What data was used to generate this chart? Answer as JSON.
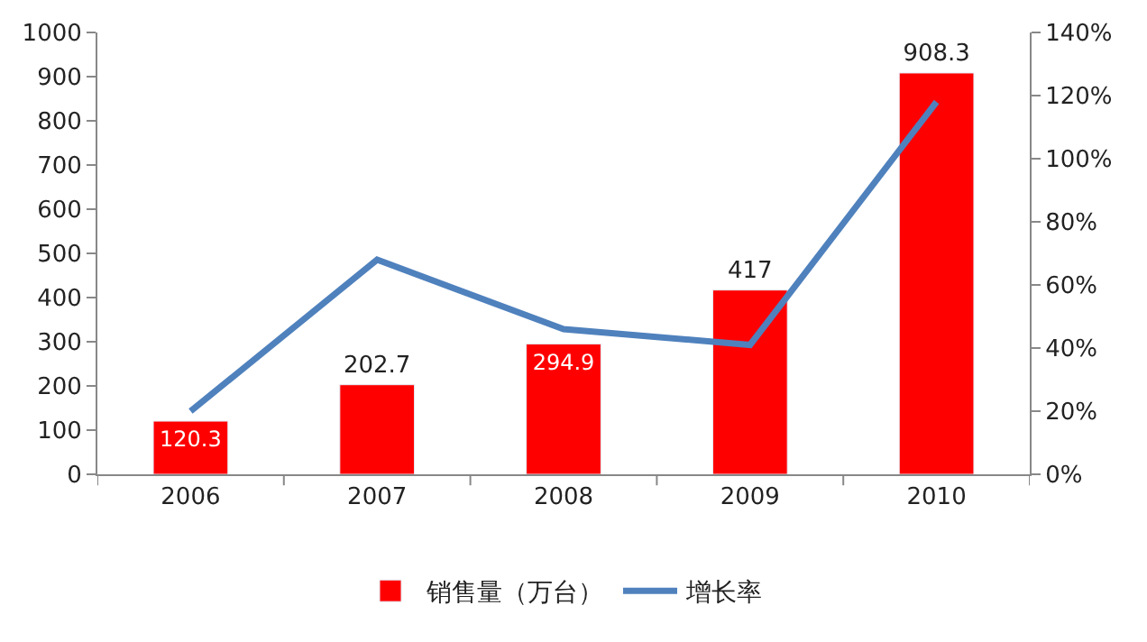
{
  "chart_data": {
    "type": "bar",
    "categories": [
      "2006",
      "2007",
      "2008",
      "2009",
      "2010"
    ],
    "series": [
      {
        "name": "销售量（万台）",
        "color": "#ff0000",
        "values": [
          120.3,
          202.7,
          294.9,
          417,
          908.3
        ],
        "data_labels": true
      },
      {
        "name": "增长率",
        "type": "line",
        "axis": "y2",
        "color": "#4f81bd",
        "values": [
          20,
          68,
          46,
          41,
          118
        ]
      }
    ],
    "ylim": [
      0,
      1000
    ],
    "yticks": [
      0,
      100,
      200,
      300,
      400,
      500,
      600,
      700,
      800,
      900,
      1000
    ],
    "y2lim": [
      0,
      140
    ],
    "y2ticks": [
      {
        "value": 0,
        "label": "0%"
      },
      {
        "value": 20,
        "label": "20%"
      },
      {
        "value": 40,
        "label": "40%"
      },
      {
        "value": 60,
        "label": "60%"
      },
      {
        "value": 80,
        "label": "80%"
      },
      {
        "value": 100,
        "label": "100%"
      },
      {
        "value": 120,
        "label": "120%"
      },
      {
        "value": 140,
        "label": "140%"
      }
    ],
    "legend": "bottom",
    "marker": "none",
    "line_style": "solid"
  }
}
